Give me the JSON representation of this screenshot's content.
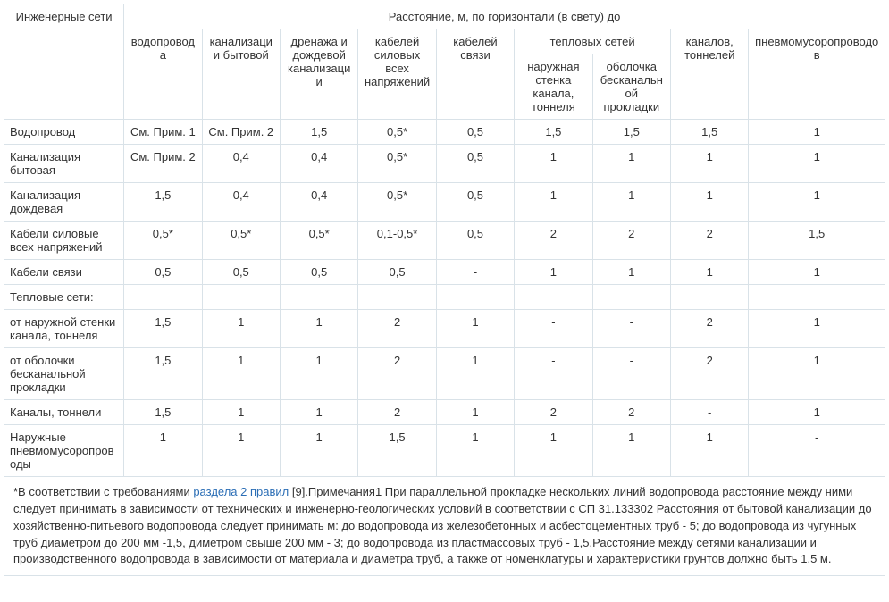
{
  "table": {
    "type": "table",
    "border_color": "#d9e2e8",
    "text_color": "#333333",
    "link_color": "#2a6db5",
    "font_family": "Arial",
    "header_fontsize": 13,
    "cell_fontsize": 13,
    "header": {
      "corner": "Инженерные сети",
      "span_title": "Расстояние, м, по горизонтали (в свету) до",
      "cols": {
        "c1": "водопровода",
        "c2": "канализации бытовой",
        "c3": "дренажа и дождевой канализации",
        "c4": "кабелей силовых всех напряжений",
        "c5": "кабелей связи",
        "heat_group": "тепловых сетей",
        "c6": "наружная стенка канала, тоннеля",
        "c7": "оболочка бесканальной прокладки",
        "c8": "каналов, тоннелей",
        "c9": "пневмомусоропроводов"
      }
    },
    "rows": [
      {
        "label": "Водопровод",
        "c": [
          "См. Прим. 1",
          "См. Прим. 2",
          "1,5",
          "0,5*",
          "0,5",
          "1,5",
          "1,5",
          "1,5",
          "1"
        ]
      },
      {
        "label": "Канализация бытовая",
        "c": [
          "См. Прим. 2",
          "0,4",
          "0,4",
          "0,5*",
          "0,5",
          "1",
          "1",
          "1",
          "1"
        ]
      },
      {
        "label": "Канализация дождевая",
        "c": [
          "1,5",
          "0,4",
          "0,4",
          "0,5*",
          "0,5",
          "1",
          "1",
          "1",
          "1"
        ]
      },
      {
        "label": "Кабели силовые всех напряжений",
        "c": [
          "0,5*",
          "0,5*",
          "0,5*",
          "0,1-0,5*",
          "0,5",
          "2",
          "2",
          "2",
          "1,5"
        ]
      },
      {
        "label": "Кабели связи",
        "c": [
          "0,5",
          "0,5",
          "0,5",
          "0,5",
          "-",
          "1",
          "1",
          "1",
          "1"
        ]
      },
      {
        "label": "Тепловые сети:",
        "c": [
          "",
          "",
          "",
          "",
          "",
          "",
          "",
          "",
          ""
        ]
      },
      {
        "label": "от наружной стенки канала, тоннеля",
        "c": [
          "1,5",
          "1",
          "1",
          "2",
          "1",
          "-",
          "-",
          "2",
          "1"
        ]
      },
      {
        "label": "от оболочки бесканальной прокладки",
        "c": [
          "1,5",
          "1",
          "1",
          "2",
          "1",
          "-",
          "-",
          "2",
          "1"
        ]
      },
      {
        "label": "Каналы, тоннели",
        "c": [
          "1,5",
          "1",
          "1",
          "2",
          "1",
          "2",
          "2",
          "-",
          "1"
        ]
      },
      {
        "label": "Наружные пневмомусоропроводы",
        "c": [
          "1",
          "1",
          "1",
          "1,5",
          "1",
          "1",
          "1",
          "1",
          "-"
        ]
      }
    ],
    "footnote": {
      "pre": "*В соответствии с требованиями ",
      "link": "раздела 2 правил",
      "post": " [9].Примечания1 При параллельной прокладке нескольких линий водопровода расстояние между ними следует принимать в зависимости от технических и инженерно-геологических условий в соответствии с СП 31.133302 Расстояния от бытовой канализации до хозяйственно-питьевого водопровода следует принимать м: до водопровода из железобетонных и асбестоцементных труб - 5; до водопровода из чугунных труб диаметром до 200 мм -1,5, диметром свыше 200 мм - 3; до водопровода из пластмассовых труб - 1,5.Расстояние между сетями канализации и производственного водопровода в зависимости от материала и диаметра труб, а также от номенклатуры и характеристики грунтов должно быть 1,5 м."
    }
  }
}
